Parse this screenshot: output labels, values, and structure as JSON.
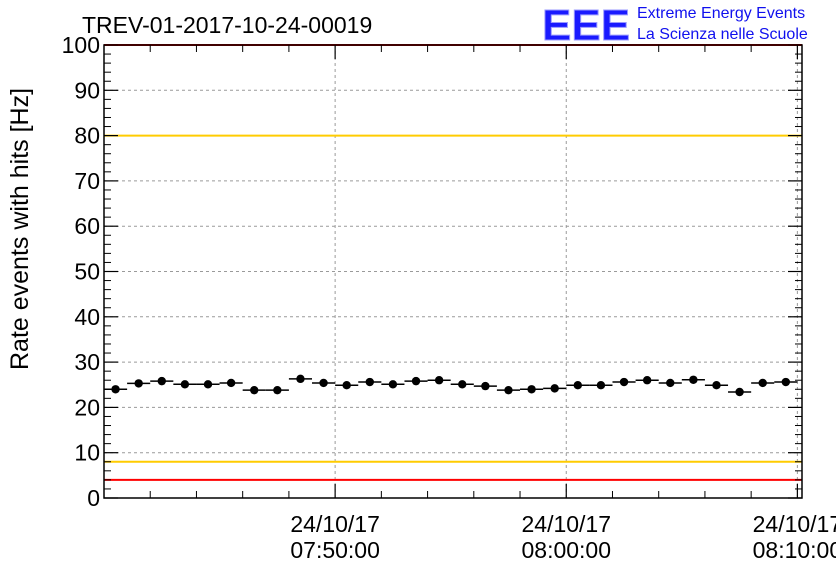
{
  "chart_data": {
    "type": "scatter",
    "title": "TREV-01-2017-10-24-00019",
    "ylabel": "Rate events with hits [Hz]",
    "xlabel": "",
    "ylim": [
      0,
      100
    ],
    "yticks": [
      0,
      10,
      20,
      30,
      40,
      50,
      60,
      70,
      80,
      90,
      100
    ],
    "xlim_minutes": [
      -20,
      10.2
    ],
    "xticks": [
      {
        "minute": -10,
        "date": "24/10/17",
        "time": "07:50:00"
      },
      {
        "minute": 0,
        "date": "24/10/17",
        "time": "08:00:00"
      },
      {
        "minute": 10,
        "date": "24/10/17",
        "time": "08:10:00"
      }
    ],
    "grid": true,
    "bin_width_minutes": 1,
    "x_minutes": [
      -19.5,
      -18.5,
      -17.5,
      -16.5,
      -15.5,
      -14.5,
      -13.5,
      -12.5,
      -11.5,
      -10.5,
      -9.5,
      -8.5,
      -7.5,
      -6.5,
      -5.5,
      -4.5,
      -3.5,
      -2.5,
      -1.5,
      -0.5,
      0.5,
      1.5,
      2.5,
      3.5,
      4.5,
      5.5,
      6.5,
      7.5,
      8.5,
      9.5
    ],
    "values": [
      24.0,
      25.3,
      25.8,
      25.1,
      25.1,
      25.4,
      23.8,
      23.8,
      26.3,
      25.4,
      24.9,
      25.6,
      25.1,
      25.8,
      26.0,
      25.1,
      24.7,
      23.8,
      24.0,
      24.2,
      24.9,
      24.9,
      25.6,
      26.0,
      25.4,
      26.1,
      24.9,
      23.4,
      25.4,
      25.6
    ],
    "error": 0.45,
    "reference_lines": [
      {
        "value": 100,
        "color": "#ff0000"
      },
      {
        "value": 80,
        "color": "#ffcc00"
      },
      {
        "value": 8,
        "color": "#ffcc00"
      },
      {
        "value": 4,
        "color": "#ff0000"
      }
    ],
    "marker_color": "#000000"
  },
  "logo": {
    "mark": "EEE",
    "line1": "Extreme Energy Events",
    "line2": "La Scienza nelle Scuole",
    "color": "#1a1aff"
  }
}
